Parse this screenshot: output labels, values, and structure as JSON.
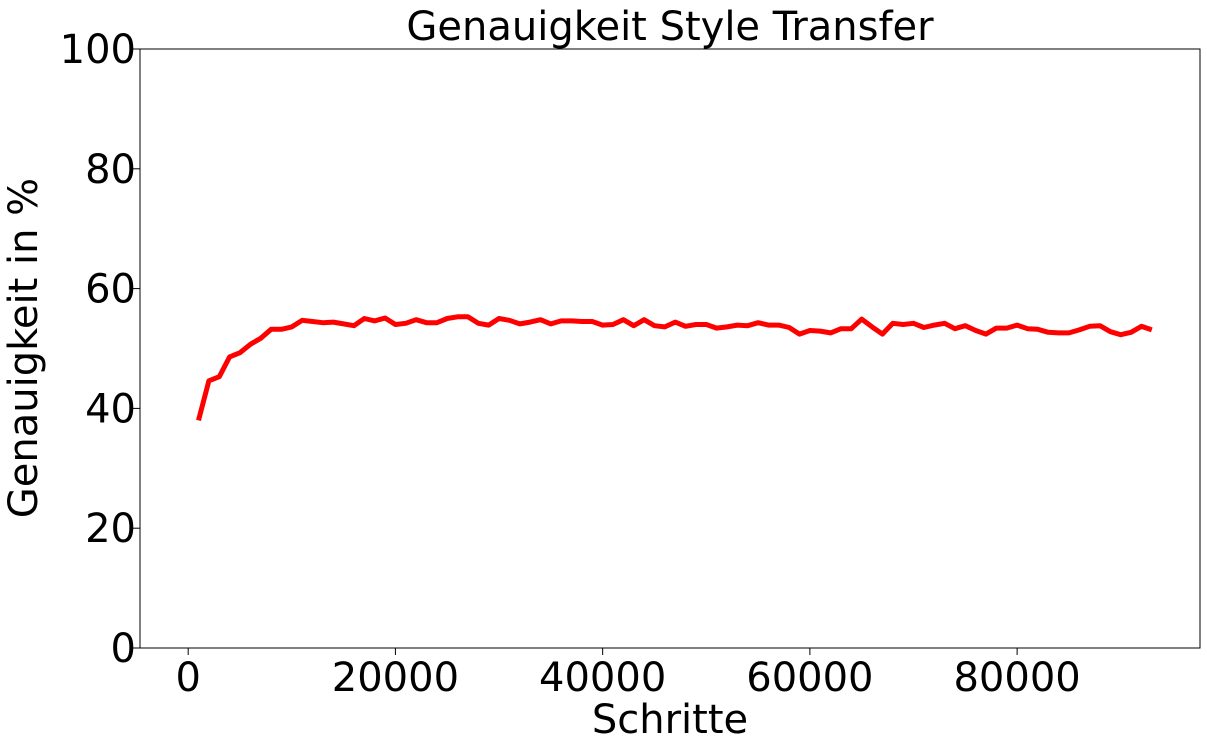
{
  "chart_data": {
    "type": "line",
    "title": "Genauigkeit Style Transfer",
    "xlabel": "Schritte",
    "ylabel": "Genauigkeit in %",
    "xlim": [
      -4650,
      97650
    ],
    "ylim": [
      0,
      100
    ],
    "xticks": [
      0,
      20000,
      40000,
      60000,
      80000
    ],
    "yticks": [
      0,
      20,
      40,
      60,
      80,
      100
    ],
    "xtick_labels": [
      "0",
      "20000",
      "40000",
      "60000",
      "80000"
    ],
    "ytick_labels": [
      "0",
      "20",
      "40",
      "60",
      "80",
      "100"
    ],
    "grid": false,
    "series": [
      {
        "color": "#ff0000",
        "x": [
          1000,
          2000,
          3000,
          4000,
          5000,
          6000,
          7000,
          8000,
          9000,
          10000,
          11000,
          12000,
          13000,
          14000,
          15000,
          16000,
          17000,
          18000,
          19000,
          20000,
          21000,
          22000,
          23000,
          24000,
          25000,
          26000,
          27000,
          28000,
          29000,
          30000,
          31000,
          32000,
          33000,
          34000,
          35000,
          36000,
          37000,
          38000,
          39000,
          40000,
          41000,
          42000,
          43000,
          44000,
          45000,
          46000,
          47000,
          48000,
          49000,
          50000,
          51000,
          52000,
          53000,
          54000,
          55000,
          56000,
          57000,
          58000,
          59000,
          60000,
          61000,
          62000,
          63000,
          64000,
          65000,
          66000,
          67000,
          68000,
          69000,
          70000,
          71000,
          72000,
          73000,
          74000,
          75000,
          76000,
          77000,
          78000,
          79000,
          80000,
          81000,
          82000,
          83000,
          84000,
          85000,
          86000,
          87000,
          88000,
          89000,
          90000,
          91000,
          92000,
          93000
        ],
        "y": [
          38.0,
          44.6,
          45.3,
          48.6,
          49.3,
          50.7,
          51.7,
          53.2,
          53.2,
          53.6,
          54.7,
          54.5,
          54.3,
          54.4,
          54.1,
          53.8,
          55.0,
          54.6,
          55.1,
          54.0,
          54.2,
          54.8,
          54.3,
          54.3,
          55.0,
          55.3,
          55.3,
          54.2,
          53.9,
          55.0,
          54.7,
          54.1,
          54.4,
          54.8,
          54.1,
          54.6,
          54.6,
          54.5,
          54.5,
          53.9,
          54.0,
          54.8,
          53.8,
          54.8,
          53.8,
          53.6,
          54.4,
          53.7,
          54.0,
          54.0,
          53.4,
          53.6,
          53.9,
          53.8,
          54.3,
          53.9,
          53.9,
          53.5,
          52.4,
          53.0,
          52.9,
          52.6,
          53.3,
          53.3,
          54.9,
          53.6,
          52.4,
          54.2,
          54.0,
          54.2,
          53.5,
          53.9,
          54.2,
          53.3,
          53.8,
          53.0,
          52.4,
          53.4,
          53.4,
          53.9,
          53.3,
          53.2,
          52.7,
          52.6,
          52.6,
          53.1,
          53.7,
          53.8,
          52.8,
          52.3,
          52.7,
          53.7,
          53.1
        ]
      }
    ]
  }
}
